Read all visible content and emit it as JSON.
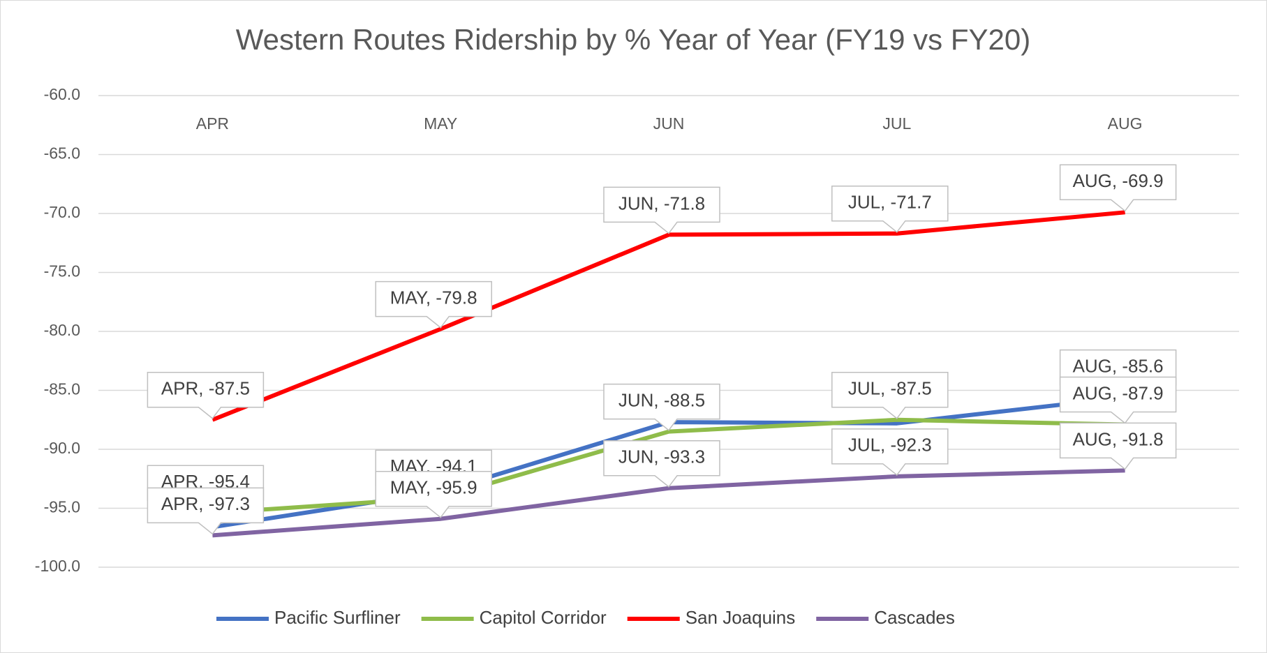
{
  "chart_data": {
    "type": "line",
    "title": "Western Routes Ridership by % Year of Year (FY19 vs FY20)",
    "categories": [
      "APR",
      "MAY",
      "JUN",
      "JUL",
      "AUG"
    ],
    "series": [
      {
        "name": "Pacific Surfliner",
        "color": "#4472c4",
        "values": [
          -96.6,
          -93.6,
          -87.7,
          -87.8,
          -85.6
        ],
        "value_labels": [
          null,
          null,
          null,
          null,
          "AUG, -85.6"
        ]
      },
      {
        "name": "Capitol Corridor",
        "color": "#8fbc4a",
        "values": [
          -95.4,
          -94.1,
          -88.5,
          -87.5,
          -87.9
        ],
        "value_labels": [
          "APR, -95.4",
          "MAY, -94.1",
          "JUN, -88.5",
          "JUL, -87.5",
          "AUG, -87.9"
        ]
      },
      {
        "name": "San Joaquins",
        "color": "#ff0000",
        "values": [
          -87.5,
          -79.8,
          -71.8,
          -71.7,
          -69.9
        ],
        "value_labels": [
          "APR, -87.5",
          "MAY, -79.8",
          "JUN, -71.8",
          "JUL, -71.7",
          "AUG, -69.9"
        ]
      },
      {
        "name": "Cascades",
        "color": "#8064a2",
        "values": [
          -97.3,
          -95.9,
          -93.3,
          -92.3,
          -91.8
        ],
        "value_labels": [
          "APR, -97.3",
          "MAY, -95.9",
          "JUN, -93.3",
          "JUL, -92.3",
          "AUG, -91.8"
        ]
      }
    ],
    "ylim": [
      -100,
      -60
    ],
    "yticks": [
      {
        "value": -100,
        "label": "-100.0"
      },
      {
        "value": -95,
        "label": "-95.0"
      },
      {
        "value": -90,
        "label": "-90.0"
      },
      {
        "value": -85,
        "label": "-85.0"
      },
      {
        "value": -80,
        "label": "-80.0"
      },
      {
        "value": -75,
        "label": "-75.0"
      },
      {
        "value": -70,
        "label": "-70.0"
      },
      {
        "value": -65,
        "label": "-65.0"
      },
      {
        "value": -60,
        "label": "-60.0"
      }
    ],
    "grid": true,
    "legend": "bottom"
  }
}
